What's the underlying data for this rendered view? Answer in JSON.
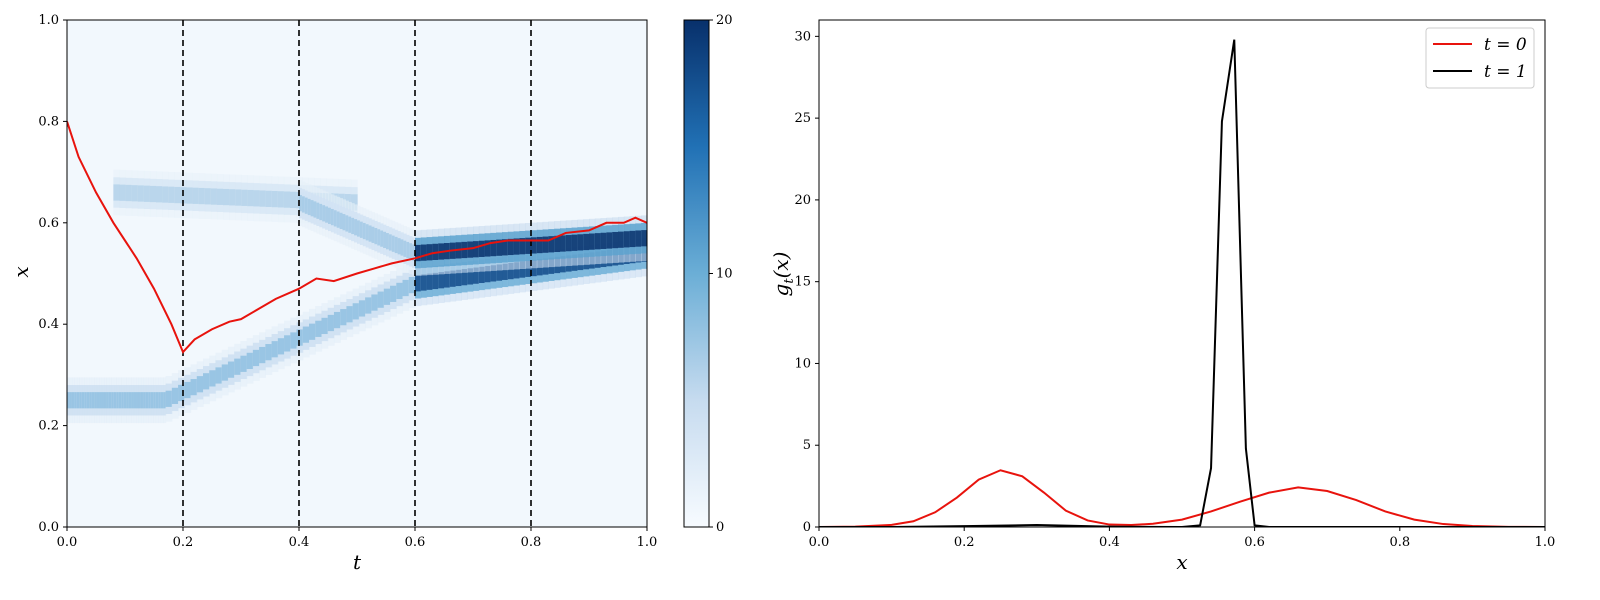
{
  "chart_data": [
    {
      "type": "heatmap",
      "xlabel": "t",
      "ylabel": "x",
      "xlim": [
        0,
        1
      ],
      "ylim": [
        0,
        1
      ],
      "x_ticks": [
        "0.0",
        "0.2",
        "0.4",
        "0.6",
        "0.8",
        "1.0"
      ],
      "y_ticks": [
        "0.0",
        "0.2",
        "0.4",
        "0.6",
        "0.8",
        "1.0"
      ],
      "colormap": "Blues",
      "colorbar": {
        "range": [
          0,
          20
        ],
        "ticks": [
          "0",
          "10",
          "20"
        ]
      },
      "vertical_dashed_lines_at_t": [
        0.2,
        0.4,
        0.6,
        0.8
      ],
      "density_bands": [
        {
          "t": [
            0.0,
            0.17
          ],
          "x": [
            0.25,
            0.25
          ],
          "intensity": 8
        },
        {
          "t": [
            0.17,
            0.6
          ],
          "x": [
            0.25,
            0.48
          ],
          "intensity": 8
        },
        {
          "t": [
            0.6,
            1.0
          ],
          "x": [
            0.48,
            0.54
          ],
          "intensity": 18
        },
        {
          "t": [
            0.08,
            0.5
          ],
          "x": [
            0.66,
            0.64
          ],
          "intensity": 6
        },
        {
          "t": [
            0.4,
            0.6
          ],
          "x": [
            0.64,
            0.54
          ],
          "intensity": 7
        },
        {
          "t": [
            0.6,
            1.0
          ],
          "x": [
            0.54,
            0.57
          ],
          "intensity": 20
        }
      ],
      "path": {
        "color": "#e8130d",
        "t": [
          0.0,
          0.02,
          0.05,
          0.08,
          0.12,
          0.15,
          0.18,
          0.2,
          0.22,
          0.25,
          0.28,
          0.3,
          0.33,
          0.36,
          0.4,
          0.43,
          0.46,
          0.5,
          0.53,
          0.56,
          0.6,
          0.63,
          0.66,
          0.7,
          0.73,
          0.76,
          0.8,
          0.83,
          0.86,
          0.9,
          0.93,
          0.96,
          0.98,
          1.0
        ],
        "x": [
          0.8,
          0.73,
          0.66,
          0.6,
          0.53,
          0.47,
          0.4,
          0.345,
          0.37,
          0.39,
          0.405,
          0.41,
          0.43,
          0.45,
          0.47,
          0.49,
          0.485,
          0.5,
          0.51,
          0.52,
          0.53,
          0.54,
          0.545,
          0.55,
          0.56,
          0.565,
          0.565,
          0.565,
          0.58,
          0.585,
          0.6,
          0.6,
          0.61,
          0.6
        ]
      }
    },
    {
      "type": "line",
      "xlabel": "x",
      "ylabel": "g_t(x)",
      "xlim": [
        0,
        1
      ],
      "ylim": [
        0,
        31
      ],
      "x_ticks": [
        "0.0",
        "0.2",
        "0.4",
        "0.6",
        "0.8",
        "1.0"
      ],
      "y_ticks": [
        "0",
        "5",
        "10",
        "15",
        "20",
        "25",
        "30"
      ],
      "legend_position": "top-right",
      "series": [
        {
          "name": "t = 0",
          "color": "#e8130d",
          "x": [
            0,
            0.05,
            0.1,
            0.13,
            0.16,
            0.19,
            0.22,
            0.25,
            0.28,
            0.31,
            0.34,
            0.37,
            0.4,
            0.43,
            0.46,
            0.5,
            0.54,
            0.58,
            0.62,
            0.66,
            0.7,
            0.74,
            0.78,
            0.82,
            0.86,
            0.9,
            0.95,
            1.0
          ],
          "y": [
            0.0,
            0.02,
            0.13,
            0.35,
            0.9,
            1.8,
            2.9,
            3.47,
            3.1,
            2.1,
            1.0,
            0.4,
            0.15,
            0.12,
            0.2,
            0.45,
            0.95,
            1.55,
            2.1,
            2.42,
            2.2,
            1.65,
            0.95,
            0.45,
            0.18,
            0.06,
            0.01,
            0.0
          ]
        },
        {
          "name": "t = 1",
          "color": "#000000",
          "x": [
            0,
            0.1,
            0.2,
            0.3,
            0.4,
            0.5,
            0.525,
            0.54,
            0.555,
            0.572,
            0.588,
            0.6,
            0.62,
            0.8,
            1.0
          ],
          "y": [
            0,
            0,
            0.05,
            0.12,
            0.02,
            0.0,
            0.1,
            3.6,
            24.8,
            29.8,
            4.8,
            0.1,
            0.0,
            0.0,
            0.0
          ]
        }
      ]
    }
  ]
}
